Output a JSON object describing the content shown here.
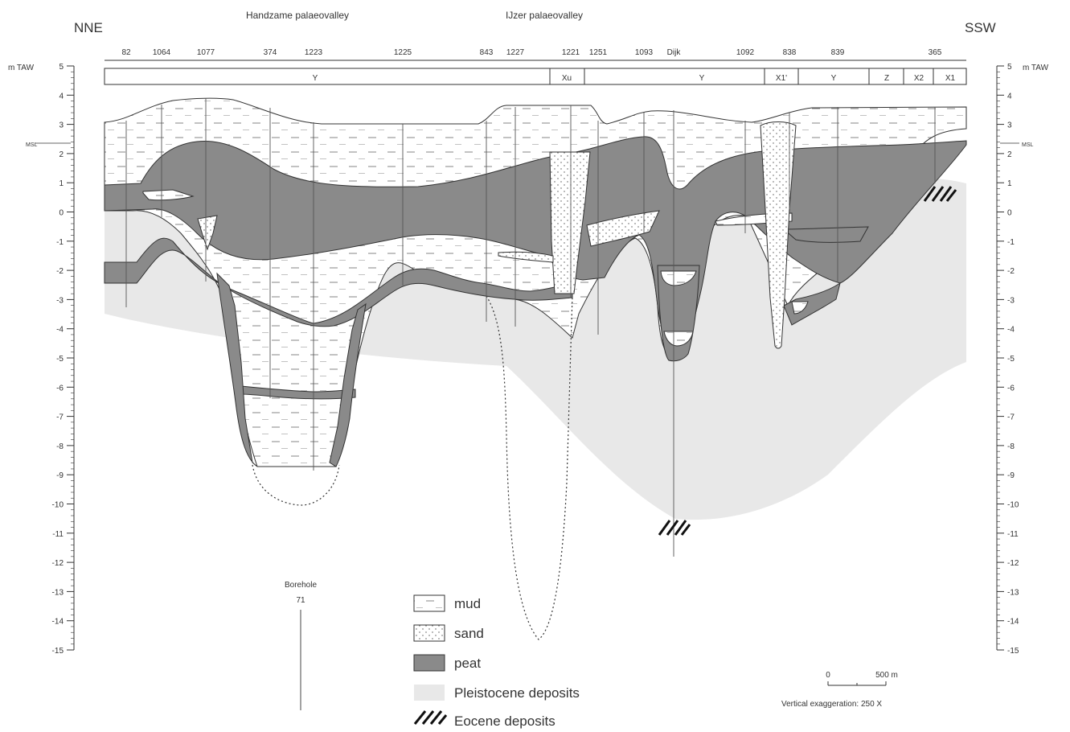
{
  "orientation": {
    "left": "NNE",
    "right": "SSW"
  },
  "palaeovalleys": [
    "Handzame palaeovalley",
    "IJzer palaeovalley"
  ],
  "axis": {
    "left_label": "m TAW",
    "right_label": "m TAW",
    "msl_label": "MSL",
    "ticks": [
      "5",
      "4",
      "3",
      "2",
      "1",
      "0",
      "-1",
      "-2",
      "-3",
      "-4",
      "-5",
      "-6",
      "-7",
      "-8",
      "-9",
      "-10",
      "-11",
      "-12",
      "-13",
      "-14",
      "-15"
    ]
  },
  "boreholes": [
    "82",
    "1064",
    "1077",
    "374",
    "1223",
    "1225",
    "843",
    "1227",
    "1221",
    "1251",
    "1093",
    "Dijk",
    "1092",
    "838",
    "839",
    "365"
  ],
  "units": [
    "Y",
    "Xu",
    "Y",
    "X1'",
    "Y",
    "Z",
    "X2",
    "X1"
  ],
  "borehole_key": {
    "title": "Borehole",
    "number": "71"
  },
  "legend": [
    "mud",
    "sand",
    "peat",
    "Pleistocene deposits",
    "Eocene deposits"
  ],
  "scale": {
    "zero": "0",
    "distance": "500 m",
    "exaggeration": "Vertical exaggeration: 250 X"
  },
  "colors": {
    "peat": "#8a8a8a",
    "pleistocene": "#e8e8e8",
    "line": "#333333"
  }
}
